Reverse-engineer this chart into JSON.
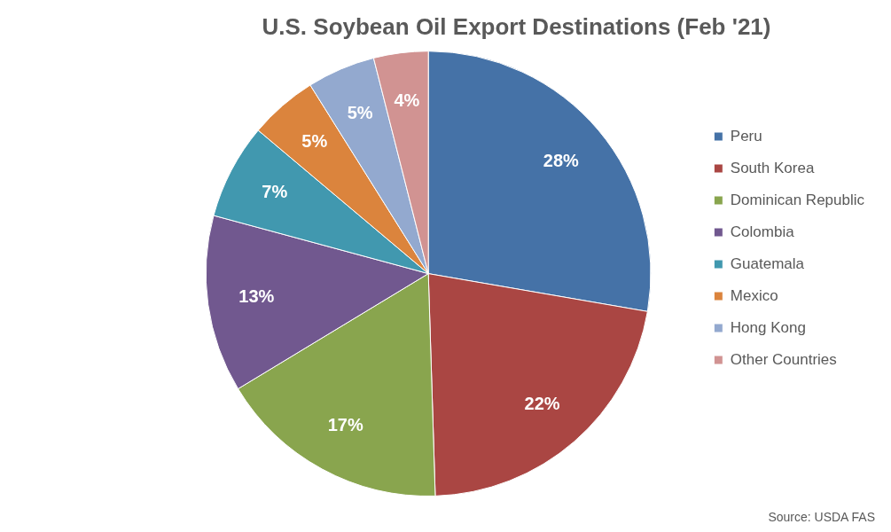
{
  "chart_data": {
    "type": "pie",
    "title": "U.S. Soybean Oil Export Destinations (Feb '21)",
    "categories": [
      "Peru",
      "South Korea",
      "Dominican Republic",
      "Colombia",
      "Guatemala",
      "Mexico",
      "Hong Kong",
      "Other Countries"
    ],
    "values": [
      28,
      22,
      17,
      13,
      7,
      5,
      5,
      4
    ],
    "colors": [
      "#4572a7",
      "#aa4643",
      "#89a54e",
      "#71588f",
      "#4198af",
      "#db843d",
      "#93a9cf",
      "#d19392"
    ],
    "value_labels": [
      "28%",
      "22%",
      "17%",
      "13%",
      "7%",
      "5%",
      "5%",
      "4%"
    ],
    "legend": "right",
    "annotations": [
      "Source: USDA FAS"
    ]
  }
}
